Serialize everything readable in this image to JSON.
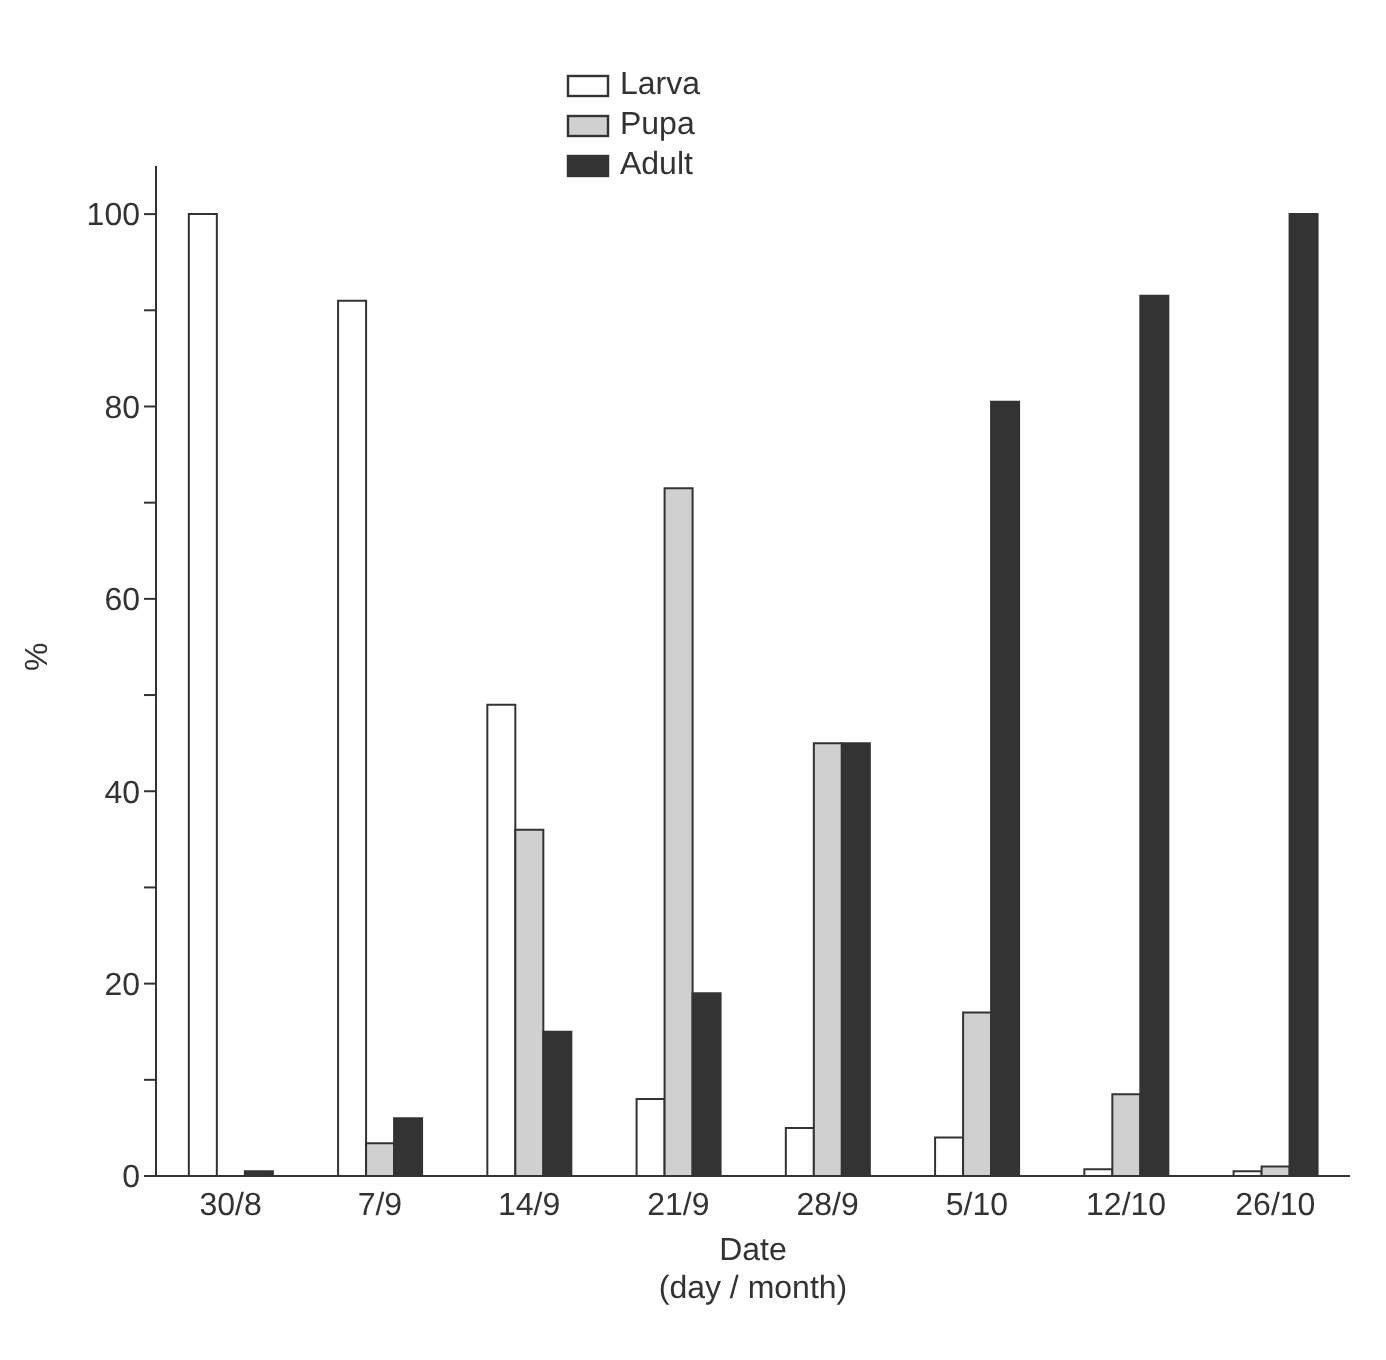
{
  "chart_data": {
    "type": "bar",
    "xlabel": "Date\n(day / month)",
    "ylabel": "%",
    "categories": [
      "30/8",
      "7/9",
      "14/9",
      "21/9",
      "28/9",
      "5/10",
      "12/10",
      "26/10"
    ],
    "series": [
      {
        "name": "Larva",
        "color": "#ffffff",
        "values": [
          100,
          91,
          49,
          8,
          5,
          4,
          0.7,
          0.5
        ]
      },
      {
        "name": "Pupa",
        "color": "#d0d0d0",
        "values": [
          0,
          3.4,
          36,
          71.5,
          45,
          17,
          8.5,
          1
        ]
      },
      {
        "name": "Adult",
        "color": "#333333",
        "values": [
          0.5,
          6,
          15,
          19,
          45,
          80.5,
          91.5,
          100
        ]
      }
    ],
    "ylim": [
      0,
      105
    ],
    "yticks": [
      0,
      {
        "value": 10,
        "label": null
      },
      20,
      {
        "value": 30,
        "label": null
      },
      40,
      {
        "value": 50,
        "label": null
      },
      60,
      {
        "value": 70,
        "label": null
      },
      80,
      {
        "value": 90,
        "label": null
      },
      100
    ],
    "legend": "top",
    "grid": false
  }
}
